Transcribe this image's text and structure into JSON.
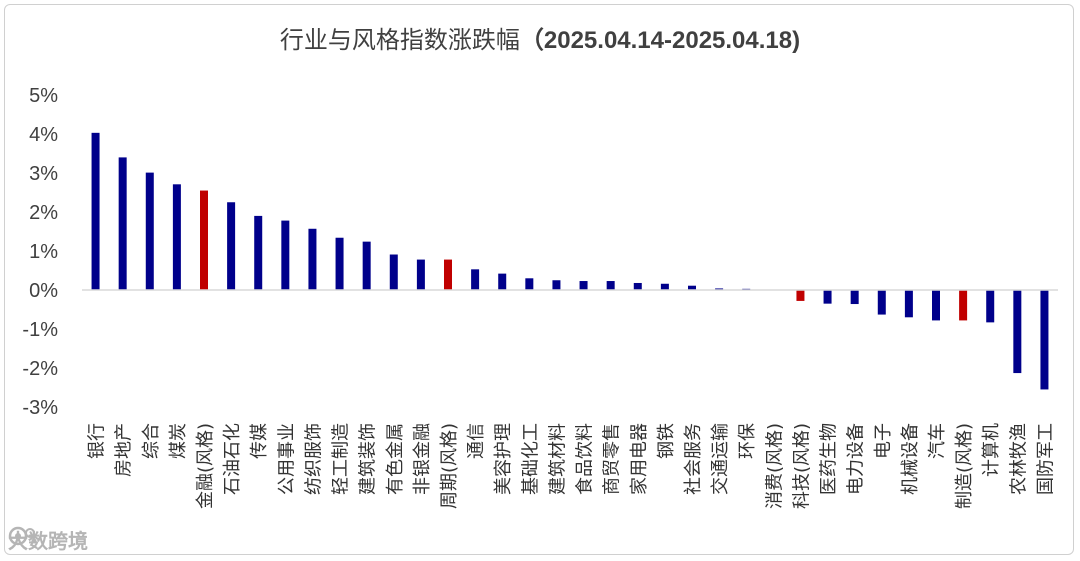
{
  "chart_data": {
    "type": "bar",
    "title": "行业与风格指数涨跌幅",
    "title_date": "（2025.04.14-2025.04.18)",
    "ylim": [
      -3,
      5
    ],
    "yticks": [
      "5%",
      "4%",
      "3%",
      "2%",
      "1%",
      "0%",
      "-1%",
      "-2%",
      "-3%"
    ],
    "grid": false,
    "legend": "none",
    "colors": {
      "industry": "#00008B",
      "style": "#C00000"
    },
    "categories": [
      "银行",
      "房地产",
      "综合",
      "煤炭",
      "金融(风格)",
      "石油石化",
      "传媒",
      "公用事业",
      "纺织服饰",
      "轻工制造",
      "建筑装饰",
      "有色金属",
      "非银金融",
      "周期(风格)",
      "通信",
      "美容护理",
      "基础化工",
      "建筑材料",
      "食品饮料",
      "商贸零售",
      "家用电器",
      "钢铁",
      "社会服务",
      "交通运输",
      "环保",
      "消费(风格)",
      "科技(风格)",
      "医药生物",
      "电力设备",
      "电子",
      "机械设备",
      "汽车",
      "制造(风格)",
      "计算机",
      "农林牧渔",
      "国防军工"
    ],
    "values": [
      4.03,
      3.4,
      3.01,
      2.71,
      2.55,
      2.25,
      1.9,
      1.78,
      1.57,
      1.34,
      1.24,
      0.91,
      0.78,
      0.78,
      0.53,
      0.42,
      0.3,
      0.25,
      0.23,
      0.23,
      0.18,
      0.16,
      0.11,
      0.04,
      0.03,
      0.0,
      -0.28,
      -0.35,
      -0.36,
      -0.63,
      -0.7,
      -0.78,
      -0.78,
      -0.83,
      -2.13,
      -2.55
    ],
    "is_style": [
      false,
      false,
      false,
      false,
      true,
      false,
      false,
      false,
      false,
      false,
      false,
      false,
      false,
      true,
      false,
      false,
      false,
      false,
      false,
      false,
      false,
      false,
      false,
      false,
      false,
      true,
      true,
      false,
      false,
      false,
      false,
      false,
      true,
      false,
      false,
      false
    ]
  },
  "watermark": {
    "text": "大数跨境",
    "icon": "brand-logo-icon"
  }
}
